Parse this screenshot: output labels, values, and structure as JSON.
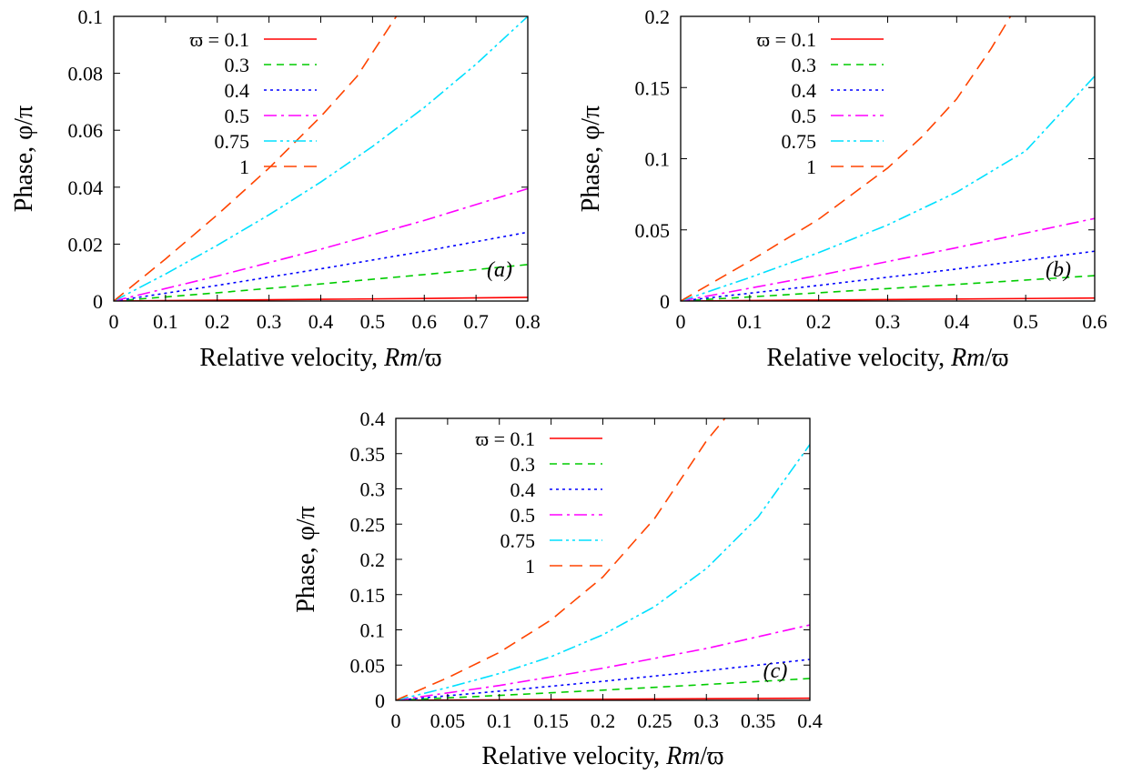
{
  "chart_data": [
    {
      "type": "line",
      "panel_label": "(a)",
      "xlabel_prefix": "Relative velocity, ",
      "xlabel_var": "Rm",
      "xlabel_suffix": "/ϖ",
      "ylabel": "Phase, φ/π",
      "xlim": [
        0,
        0.8
      ],
      "ylim": [
        0,
        0.1
      ],
      "xticks": [
        0,
        0.1,
        0.2,
        0.3,
        0.4,
        0.5,
        0.6,
        0.7,
        0.8
      ],
      "xtick_labels": [
        "0",
        "0.1",
        "0.2",
        "0.3",
        "0.4",
        "0.5",
        "0.6",
        "0.7",
        "0.8"
      ],
      "yticks": [
        0,
        0.02,
        0.04,
        0.06,
        0.08,
        0.1
      ],
      "ytick_labels": [
        "0",
        "0.02",
        "0.04",
        "0.06",
        "0.08",
        "0.1"
      ],
      "legend_position": "top-left",
      "grid": false,
      "series": [
        {
          "name": "ϖ = 0.1",
          "color": "#ff0000",
          "dash": "",
          "x": [
            0,
            0.2,
            0.4,
            0.6,
            0.8
          ],
          "y": [
            0,
            0.0003,
            0.0006,
            0.0009,
            0.0013
          ]
        },
        {
          "name": "0.3",
          "color": "#00cc00",
          "dash": "8,6",
          "x": [
            0,
            0.2,
            0.4,
            0.6,
            0.8
          ],
          "y": [
            0,
            0.0029,
            0.006,
            0.0093,
            0.0128
          ]
        },
        {
          "name": "0.4",
          "color": "#0000ff",
          "dash": "3,4",
          "x": [
            0,
            0.2,
            0.4,
            0.6,
            0.8
          ],
          "y": [
            0,
            0.0055,
            0.0113,
            0.0175,
            0.0242
          ]
        },
        {
          "name": "0.5",
          "color": "#ff00ff",
          "dash": "14,5,3,5",
          "x": [
            0,
            0.2,
            0.4,
            0.6,
            0.8
          ],
          "y": [
            0,
            0.0088,
            0.0182,
            0.0283,
            0.0395
          ]
        },
        {
          "name": "0.75",
          "color": "#00e0ff",
          "dash": "14,4,3,4,3,4",
          "x": [
            0,
            0.1,
            0.2,
            0.3,
            0.4,
            0.5,
            0.6,
            0.7,
            0.8
          ],
          "y": [
            0,
            0.0095,
            0.0196,
            0.0303,
            0.0418,
            0.0543,
            0.068,
            0.0832,
            0.1
          ]
        },
        {
          "name": "1",
          "color": "#ff4400",
          "dash": "14,8",
          "x": [
            0,
            0.1,
            0.2,
            0.3,
            0.4,
            0.47,
            0.546
          ],
          "y": [
            0,
            0.0148,
            0.0303,
            0.0467,
            0.0648,
            0.0789,
            0.1
          ]
        }
      ]
    },
    {
      "type": "line",
      "panel_label": "(b)",
      "xlabel_prefix": "Relative velocity, ",
      "xlabel_var": "Rm",
      "xlabel_suffix": "/ϖ",
      "ylabel": "Phase, φ/π",
      "xlim": [
        0,
        0.6
      ],
      "ylim": [
        0,
        0.2
      ],
      "xticks": [
        0,
        0.1,
        0.2,
        0.3,
        0.4,
        0.5,
        0.6
      ],
      "xtick_labels": [
        "0",
        "0.1",
        "0.2",
        "0.3",
        "0.4",
        "0.5",
        "0.6"
      ],
      "yticks": [
        0,
        0.05,
        0.1,
        0.15,
        0.2
      ],
      "ytick_labels": [
        "0",
        "0.05",
        "0.1",
        "0.15",
        "0.2"
      ],
      "legend_position": "top-left",
      "grid": false,
      "series": [
        {
          "name": "ϖ = 0.1",
          "color": "#ff0000",
          "dash": "",
          "x": [
            0,
            0.2,
            0.4,
            0.6
          ],
          "y": [
            0,
            0.0007,
            0.0014,
            0.0021
          ]
        },
        {
          "name": "0.3",
          "color": "#00cc00",
          "dash": "8,6",
          "x": [
            0,
            0.2,
            0.4,
            0.6
          ],
          "y": [
            0,
            0.0058,
            0.0117,
            0.0178
          ]
        },
        {
          "name": "0.4",
          "color": "#0000ff",
          "dash": "3,4",
          "x": [
            0,
            0.2,
            0.4,
            0.6
          ],
          "y": [
            0,
            0.011,
            0.0225,
            0.035
          ]
        },
        {
          "name": "0.5",
          "color": "#ff00ff",
          "dash": "14,5,3,5",
          "x": [
            0,
            0.2,
            0.4,
            0.6
          ],
          "y": [
            0,
            0.018,
            0.0375,
            0.058
          ]
        },
        {
          "name": "0.75",
          "color": "#00e0ff",
          "dash": "14,4,3,4,3,4",
          "x": [
            0,
            0.1,
            0.2,
            0.3,
            0.4,
            0.5,
            0.6
          ],
          "y": [
            0,
            0.0165,
            0.034,
            0.0535,
            0.0765,
            0.1055,
            0.158
          ]
        },
        {
          "name": "1",
          "color": "#ff4400",
          "dash": "14,8",
          "x": [
            0,
            0.1,
            0.2,
            0.3,
            0.35,
            0.4,
            0.45,
            0.478
          ],
          "y": [
            0,
            0.028,
            0.0575,
            0.0935,
            0.1155,
            0.142,
            0.1775,
            0.2
          ]
        }
      ]
    },
    {
      "type": "line",
      "panel_label": "(c)",
      "xlabel_prefix": "Relative velocity, ",
      "xlabel_var": "Rm",
      "xlabel_suffix": "/ϖ",
      "ylabel": "Phase, φ/π",
      "xlim": [
        0,
        0.4
      ],
      "ylim": [
        0,
        0.4
      ],
      "xticks": [
        0,
        0.05,
        0.1,
        0.15,
        0.2,
        0.25,
        0.3,
        0.35,
        0.4
      ],
      "xtick_labels": [
        "0",
        "0.05",
        "0.1",
        "0.15",
        "0.2",
        "0.25",
        "0.3",
        "0.35",
        "0.4"
      ],
      "yticks": [
        0,
        0.05,
        0.1,
        0.15,
        0.2,
        0.25,
        0.3,
        0.35,
        0.4
      ],
      "ytick_labels": [
        "0",
        "0.05",
        "0.1",
        "0.15",
        "0.2",
        "0.25",
        "0.3",
        "0.35",
        "0.4"
      ],
      "legend_position": "top-left",
      "grid": false,
      "series": [
        {
          "name": "ϖ = 0.1",
          "color": "#ff0000",
          "dash": "",
          "x": [
            0,
            0.2,
            0.4
          ],
          "y": [
            0,
            0.0015,
            0.003
          ]
        },
        {
          "name": "0.3",
          "color": "#00cc00",
          "dash": "8,6",
          "x": [
            0,
            0.1,
            0.2,
            0.3,
            0.4
          ],
          "y": [
            0,
            0.007,
            0.0145,
            0.0225,
            0.031
          ]
        },
        {
          "name": "0.4",
          "color": "#0000ff",
          "dash": "3,4",
          "x": [
            0,
            0.1,
            0.2,
            0.3,
            0.4
          ],
          "y": [
            0,
            0.013,
            0.027,
            0.042,
            0.058
          ]
        },
        {
          "name": "0.5",
          "color": "#ff00ff",
          "dash": "14,5,3,5",
          "x": [
            0,
            0.1,
            0.2,
            0.3,
            0.4
          ],
          "y": [
            0,
            0.021,
            0.0455,
            0.0735,
            0.107
          ]
        },
        {
          "name": "0.75",
          "color": "#00e0ff",
          "dash": "14,4,3,4,3,4",
          "x": [
            0,
            0.05,
            0.1,
            0.15,
            0.2,
            0.25,
            0.3,
            0.35,
            0.4
          ],
          "y": [
            0,
            0.018,
            0.038,
            0.062,
            0.093,
            0.133,
            0.187,
            0.26,
            0.363
          ]
        },
        {
          "name": "1",
          "color": "#ff4400",
          "dash": "14,8",
          "x": [
            0,
            0.05,
            0.1,
            0.15,
            0.2,
            0.25,
            0.3,
            0.318
          ],
          "y": [
            0,
            0.032,
            0.068,
            0.114,
            0.175,
            0.258,
            0.368,
            0.4
          ]
        }
      ]
    }
  ]
}
